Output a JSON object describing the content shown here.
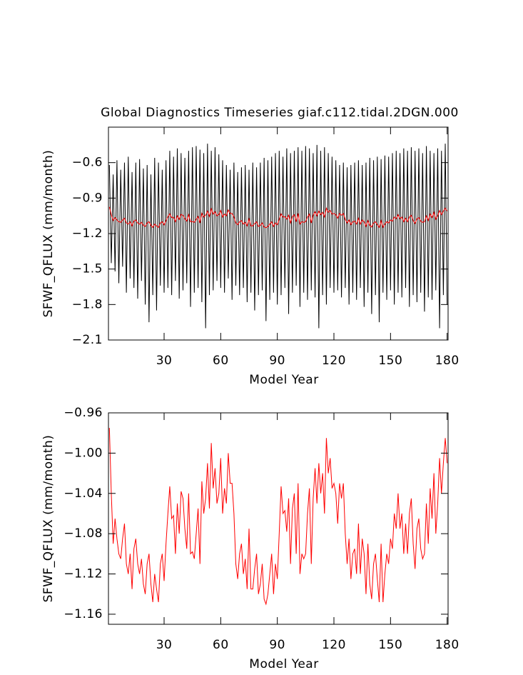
{
  "chart_data": [
    {
      "type": "line",
      "title": "Global Diagnostics Timeseries giaf.c112.tidal.2DGN.000",
      "x_label": "Model Year",
      "y_label": "SFWF_QFLUX (mm/month)",
      "xlim": [
        0.5,
        180.5
      ],
      "xticks": [
        30,
        60,
        90,
        120,
        150,
        180
      ],
      "ylim": [
        -2.1,
        -0.3
      ],
      "yticks": [
        {
          "value": -2.1,
          "label": "−2.1"
        },
        {
          "value": -1.8,
          "label": "−1.8"
        },
        {
          "value": -1.5,
          "label": "−1.5"
        },
        {
          "value": -1.2,
          "label": "−1.2"
        },
        {
          "value": -0.9,
          "label": "−0.9"
        },
        {
          "value": -0.6,
          "label": "−0.6"
        }
      ],
      "x": [
        1,
        2,
        3,
        4,
        5,
        6,
        7,
        8,
        9,
        10,
        11,
        12,
        13,
        14,
        15,
        16,
        17,
        18,
        19,
        20,
        21,
        22,
        23,
        24,
        25,
        26,
        27,
        28,
        29,
        30,
        31,
        32,
        33,
        34,
        35,
        36,
        37,
        38,
        39,
        40,
        41,
        42,
        43,
        44,
        45,
        46,
        47,
        48,
        49,
        50,
        51,
        52,
        53,
        54,
        55,
        56,
        57,
        58,
        59,
        60,
        61,
        62,
        63,
        64,
        65,
        66,
        67,
        68,
        69,
        70,
        71,
        72,
        73,
        74,
        75,
        76,
        77,
        78,
        79,
        80,
        81,
        82,
        83,
        84,
        85,
        86,
        87,
        88,
        89,
        90,
        91,
        92,
        93,
        94,
        95,
        96,
        97,
        98,
        99,
        100,
        101,
        102,
        103,
        104,
        105,
        106,
        107,
        108,
        109,
        110,
        111,
        112,
        113,
        114,
        115,
        116,
        117,
        118,
        119,
        120,
        121,
        122,
        123,
        124,
        125,
        126,
        127,
        128,
        129,
        130,
        131,
        132,
        133,
        134,
        135,
        136,
        137,
        138,
        139,
        140,
        141,
        142,
        143,
        144,
        145,
        146,
        147,
        148,
        149,
        150,
        151,
        152,
        153,
        154,
        155,
        156,
        157,
        158,
        159,
        160,
        161,
        162,
        163,
        164,
        165,
        166,
        167,
        168,
        169,
        170,
        171,
        172,
        173,
        174,
        175,
        176,
        177,
        178,
        179,
        180
      ],
      "series": [
        {
          "color": "#000000",
          "values": [
            -0.62,
            -1.45,
            -0.7,
            -1.52,
            -0.58,
            -1.62,
            -0.66,
            -1.48,
            -0.6,
            -1.7,
            -0.55,
            -1.58,
            -0.68,
            -1.66,
            -0.6,
            -1.75,
            -0.57,
            -1.6,
            -0.65,
            -1.8,
            -0.62,
            -1.95,
            -0.7,
            -1.72,
            -0.56,
            -1.85,
            -0.6,
            -1.64,
            -0.66,
            -1.7,
            -0.58,
            -1.66,
            -0.5,
            -1.72,
            -0.55,
            -1.6,
            -0.48,
            -1.75,
            -0.52,
            -1.68,
            -0.56,
            -1.62,
            -0.5,
            -1.82,
            -0.47,
            -1.7,
            -0.46,
            -1.66,
            -0.49,
            -1.78,
            -0.52,
            -2.0,
            -0.44,
            -1.72,
            -0.5,
            -1.68,
            -0.47,
            -1.6,
            -0.53,
            -1.66,
            -0.58,
            -1.7,
            -0.62,
            -1.58,
            -0.66,
            -1.76,
            -0.6,
            -1.64,
            -0.68,
            -1.72,
            -0.64,
            -1.66,
            -0.62,
            -1.78,
            -0.66,
            -1.7,
            -0.6,
            -1.85,
            -0.64,
            -1.72,
            -0.6,
            -1.68,
            -0.56,
            -1.94,
            -0.58,
            -1.76,
            -0.55,
            -1.7,
            -0.52,
            -1.8,
            -0.5,
            -1.72,
            -0.55,
            -1.66,
            -0.48,
            -1.88,
            -0.52,
            -1.7,
            -0.5,
            -1.64,
            -0.47,
            -1.82,
            -0.5,
            -1.7,
            -0.46,
            -1.76,
            -0.48,
            -1.68,
            -0.52,
            -1.74,
            -0.45,
            -2.0,
            -0.5,
            -1.72,
            -0.47,
            -1.8,
            -0.52,
            -1.66,
            -0.55,
            -1.7,
            -0.58,
            -1.68,
            -0.62,
            -1.74,
            -0.6,
            -1.66,
            -0.64,
            -1.8,
            -0.62,
            -1.7,
            -0.6,
            -1.76,
            -0.58,
            -1.66,
            -0.62,
            -1.82,
            -0.6,
            -1.7,
            -0.56,
            -1.88,
            -0.58,
            -1.72,
            -0.55,
            -1.95,
            -0.57,
            -1.7,
            -0.54,
            -1.76,
            -0.55,
            -1.68,
            -0.52,
            -1.8,
            -0.5,
            -1.7,
            -0.52,
            -1.74,
            -0.48,
            -1.66,
            -0.5,
            -1.82,
            -0.47,
            -1.72,
            -0.5,
            -1.78,
            -0.48,
            -1.7,
            -0.52,
            -1.86,
            -0.46,
            -1.74,
            -0.5,
            -1.76,
            -0.52,
            -1.68,
            -0.48,
            -2.0,
            -0.5,
            -1.72,
            -0.44,
            -1.8
          ]
        },
        {
          "color": "#ff0000",
          "values": [
            -0.975,
            -1.04,
            -1.09,
            -1.065,
            -1.085,
            -1.1,
            -1.105,
            -1.085,
            -1.07,
            -1.11,
            -1.12,
            -1.1,
            -1.135,
            -1.095,
            -1.085,
            -1.11,
            -1.12,
            -1.105,
            -1.13,
            -1.14,
            -1.11,
            -1.1,
            -1.13,
            -1.148,
            -1.12,
            -1.135,
            -1.148,
            -1.11,
            -1.1,
            -1.127,
            -1.09,
            -1.06,
            -1.033,
            -1.065,
            -1.062,
            -1.1,
            -1.05,
            -1.08,
            -1.038,
            -1.045,
            -1.075,
            -1.095,
            -1.04,
            -1.1,
            -1.098,
            -1.105,
            -1.08,
            -1.055,
            -1.11,
            -1.028,
            -1.06,
            -1.045,
            -1.01,
            -1.055,
            -0.99,
            -1.035,
            -1.015,
            -1.05,
            -1.04,
            -1.005,
            -1.06,
            -1.035,
            -1.05,
            -1.0,
            -1.03,
            -1.03,
            -1.06,
            -1.11,
            -1.125,
            -1.1,
            -1.09,
            -1.12,
            -1.105,
            -1.135,
            -1.075,
            -1.135,
            -1.135,
            -1.115,
            -1.1,
            -1.14,
            -1.13,
            -1.11,
            -1.145,
            -1.15,
            -1.14,
            -1.12,
            -1.1,
            -1.14,
            -1.11,
            -1.125,
            -1.08,
            -1.033,
            -1.06,
            -1.057,
            -1.078,
            -1.045,
            -1.11,
            -1.055,
            -1.04,
            -1.1,
            -1.03,
            -1.12,
            -1.1,
            -1.105,
            -1.1,
            -1.06,
            -1.035,
            -1.11,
            -1.045,
            -1.015,
            -1.05,
            -1.01,
            -1.04,
            -1.02,
            -1.06,
            -0.985,
            -1.02,
            -1.005,
            -1.035,
            -1.03,
            -1.04,
            -1.07,
            -1.03,
            -1.045,
            -1.03,
            -1.08,
            -1.11,
            -1.085,
            -1.125,
            -1.1,
            -1.095,
            -1.12,
            -1.07,
            -1.12,
            -1.085,
            -1.1,
            -1.14,
            -1.09,
            -1.13,
            -1.145,
            -1.11,
            -1.1,
            -1.125,
            -1.148,
            -1.09,
            -1.148,
            -1.12,
            -1.1,
            -1.11,
            -1.085,
            -1.095,
            -1.06,
            -1.075,
            -1.04,
            -1.075,
            -1.06,
            -1.1,
            -1.07,
            -1.1,
            -1.06,
            -1.045,
            -1.09,
            -1.115,
            -1.075,
            -1.065,
            -1.095,
            -1.105,
            -1.1,
            -1.05,
            -1.09,
            -1.035,
            -1.065,
            -1.02,
            -1.08,
            -1.05,
            -1.005,
            -1.04,
            -1.01,
            -0.985,
            -1.01
          ]
        }
      ]
    },
    {
      "type": "line",
      "x_label": "Model Year",
      "y_label": "SFWF_QFLUX (mm/month)",
      "xlim": [
        0.5,
        180.5
      ],
      "xticks": [
        30,
        60,
        90,
        120,
        150,
        180
      ],
      "ylim": [
        -1.17,
        -0.96
      ],
      "yticks": [
        {
          "value": -1.16,
          "label": "−1.16"
        },
        {
          "value": -1.12,
          "label": "−1.12"
        },
        {
          "value": -1.08,
          "label": "−1.08"
        },
        {
          "value": -1.04,
          "label": "−1.04"
        },
        {
          "value": -1.0,
          "label": "−1.00"
        },
        {
          "value": -0.96,
          "label": "−0.96"
        }
      ],
      "x": [
        1,
        2,
        3,
        4,
        5,
        6,
        7,
        8,
        9,
        10,
        11,
        12,
        13,
        14,
        15,
        16,
        17,
        18,
        19,
        20,
        21,
        22,
        23,
        24,
        25,
        26,
        27,
        28,
        29,
        30,
        31,
        32,
        33,
        34,
        35,
        36,
        37,
        38,
        39,
        40,
        41,
        42,
        43,
        44,
        45,
        46,
        47,
        48,
        49,
        50,
        51,
        52,
        53,
        54,
        55,
        56,
        57,
        58,
        59,
        60,
        61,
        62,
        63,
        64,
        65,
        66,
        67,
        68,
        69,
        70,
        71,
        72,
        73,
        74,
        75,
        76,
        77,
        78,
        79,
        80,
        81,
        82,
        83,
        84,
        85,
        86,
        87,
        88,
        89,
        90,
        91,
        92,
        93,
        94,
        95,
        96,
        97,
        98,
        99,
        100,
        101,
        102,
        103,
        104,
        105,
        106,
        107,
        108,
        109,
        110,
        111,
        112,
        113,
        114,
        115,
        116,
        117,
        118,
        119,
        120,
        121,
        122,
        123,
        124,
        125,
        126,
        127,
        128,
        129,
        130,
        131,
        132,
        133,
        134,
        135,
        136,
        137,
        138,
        139,
        140,
        141,
        142,
        143,
        144,
        145,
        146,
        147,
        148,
        149,
        150,
        151,
        152,
        153,
        154,
        155,
        156,
        157,
        158,
        159,
        160,
        161,
        162,
        163,
        164,
        165,
        166,
        167,
        168,
        169,
        170,
        171,
        172,
        173,
        174,
        175,
        176,
        177,
        178,
        179,
        180
      ],
      "series": [
        {
          "color": "#ff0000",
          "values": [
            -0.975,
            -1.04,
            -1.09,
            -1.065,
            -1.085,
            -1.1,
            -1.105,
            -1.085,
            -1.07,
            -1.11,
            -1.12,
            -1.1,
            -1.135,
            -1.095,
            -1.085,
            -1.11,
            -1.12,
            -1.105,
            -1.13,
            -1.14,
            -1.11,
            -1.1,
            -1.13,
            -1.148,
            -1.12,
            -1.135,
            -1.148,
            -1.11,
            -1.1,
            -1.127,
            -1.09,
            -1.06,
            -1.033,
            -1.065,
            -1.062,
            -1.1,
            -1.05,
            -1.08,
            -1.038,
            -1.045,
            -1.075,
            -1.095,
            -1.04,
            -1.1,
            -1.098,
            -1.105,
            -1.08,
            -1.055,
            -1.11,
            -1.028,
            -1.06,
            -1.045,
            -1.01,
            -1.055,
            -0.99,
            -1.035,
            -1.015,
            -1.05,
            -1.04,
            -1.005,
            -1.06,
            -1.035,
            -1.05,
            -1.0,
            -1.03,
            -1.03,
            -1.06,
            -1.11,
            -1.125,
            -1.1,
            -1.09,
            -1.12,
            -1.105,
            -1.135,
            -1.075,
            -1.135,
            -1.135,
            -1.115,
            -1.1,
            -1.14,
            -1.13,
            -1.11,
            -1.145,
            -1.15,
            -1.14,
            -1.12,
            -1.1,
            -1.14,
            -1.11,
            -1.125,
            -1.08,
            -1.033,
            -1.06,
            -1.057,
            -1.078,
            -1.045,
            -1.11,
            -1.055,
            -1.04,
            -1.1,
            -1.03,
            -1.12,
            -1.1,
            -1.105,
            -1.1,
            -1.06,
            -1.035,
            -1.11,
            -1.045,
            -1.015,
            -1.05,
            -1.01,
            -1.04,
            -1.02,
            -1.06,
            -0.985,
            -1.02,
            -1.005,
            -1.035,
            -1.03,
            -1.04,
            -1.07,
            -1.03,
            -1.045,
            -1.03,
            -1.08,
            -1.11,
            -1.085,
            -1.125,
            -1.1,
            -1.095,
            -1.12,
            -1.07,
            -1.12,
            -1.085,
            -1.1,
            -1.14,
            -1.09,
            -1.13,
            -1.145,
            -1.11,
            -1.1,
            -1.125,
            -1.148,
            -1.09,
            -1.148,
            -1.12,
            -1.1,
            -1.11,
            -1.085,
            -1.095,
            -1.06,
            -1.075,
            -1.04,
            -1.075,
            -1.06,
            -1.1,
            -1.07,
            -1.1,
            -1.06,
            -1.045,
            -1.09,
            -1.115,
            -1.075,
            -1.065,
            -1.095,
            -1.105,
            -1.1,
            -1.05,
            -1.09,
            -1.035,
            -1.065,
            -1.02,
            -1.08,
            -1.05,
            -1.005,
            -1.04,
            -1.01,
            -0.985,
            -1.01
          ]
        }
      ]
    }
  ]
}
